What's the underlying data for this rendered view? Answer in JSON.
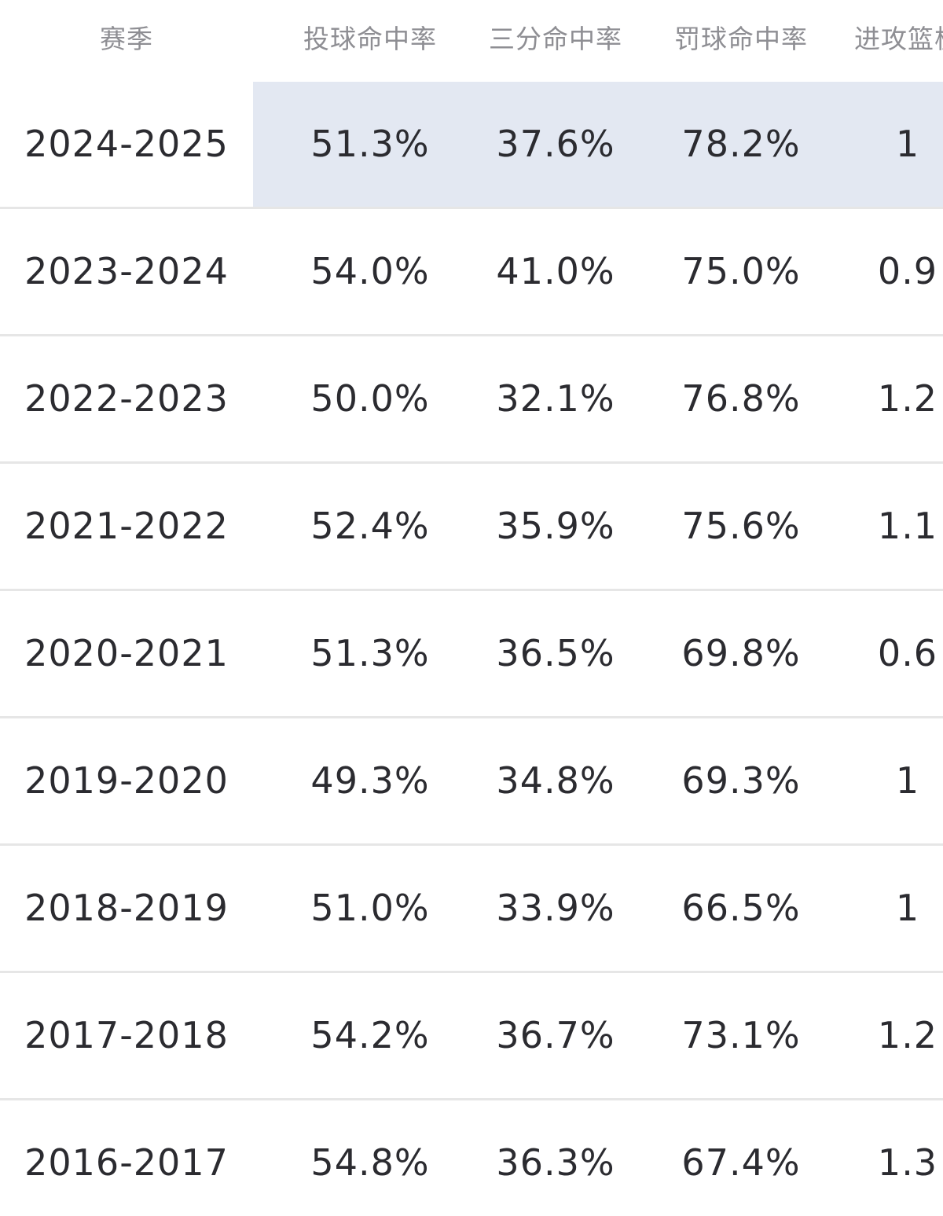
{
  "table": {
    "headers": {
      "season": "赛季",
      "fg_pct": "投球命中率",
      "three_pct": "三分命中率",
      "ft_pct": "罚球命中率",
      "oreb": "进攻篮板"
    },
    "rows": [
      {
        "season": "2024-2025",
        "fg_pct": "51.3%",
        "three_pct": "37.6%",
        "ft_pct": "78.2%",
        "oreb": "1",
        "highlighted": true
      },
      {
        "season": "2023-2024",
        "fg_pct": "54.0%",
        "three_pct": "41.0%",
        "ft_pct": "75.0%",
        "oreb": "0.9"
      },
      {
        "season": "2022-2023",
        "fg_pct": "50.0%",
        "three_pct": "32.1%",
        "ft_pct": "76.8%",
        "oreb": "1.2"
      },
      {
        "season": "2021-2022",
        "fg_pct": "52.4%",
        "three_pct": "35.9%",
        "ft_pct": "75.6%",
        "oreb": "1.1"
      },
      {
        "season": "2020-2021",
        "fg_pct": "51.3%",
        "three_pct": "36.5%",
        "ft_pct": "69.8%",
        "oreb": "0.6"
      },
      {
        "season": "2019-2020",
        "fg_pct": "49.3%",
        "three_pct": "34.8%",
        "ft_pct": "69.3%",
        "oreb": "1"
      },
      {
        "season": "2018-2019",
        "fg_pct": "51.0%",
        "three_pct": "33.9%",
        "ft_pct": "66.5%",
        "oreb": "1"
      },
      {
        "season": "2017-2018",
        "fg_pct": "54.2%",
        "three_pct": "36.7%",
        "ft_pct": "73.1%",
        "oreb": "1.2"
      },
      {
        "season": "2016-2017",
        "fg_pct": "54.8%",
        "three_pct": "36.3%",
        "ft_pct": "67.4%",
        "oreb": "1.3"
      }
    ]
  },
  "colors": {
    "header_text": "#8e8e93",
    "cell_text": "#2b2b30",
    "highlight_bg": "#e3e8f2",
    "divider": "#e6e6e6"
  }
}
